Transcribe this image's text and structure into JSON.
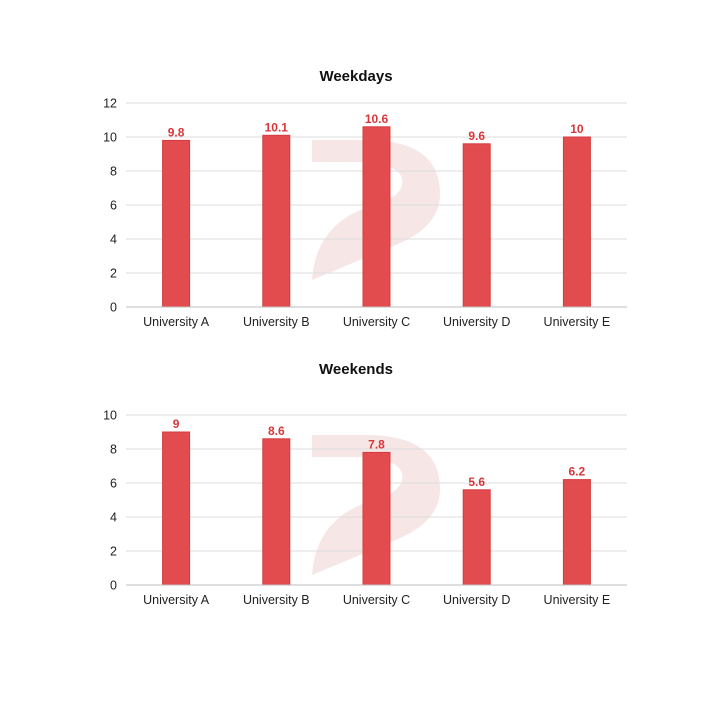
{
  "colors": {
    "bar": "#e24c4f",
    "bar_stroke": "#d63b3f",
    "label": "#d9363a",
    "watermark": "#f6e3e3"
  },
  "watermark_icon": "brand-logo-watermark",
  "chart_data": [
    {
      "type": "bar",
      "title": "Weekdays",
      "categories": [
        "University A",
        "University B",
        "University C",
        "University D",
        "University E"
      ],
      "values": [
        9.8,
        10.1,
        10.6,
        9.6,
        10
      ],
      "data_labels": [
        "9.8",
        "10.1",
        "10.6",
        "9.6",
        "10"
      ],
      "yticks": [
        "0",
        "2",
        "4",
        "6",
        "8",
        "10",
        "12"
      ],
      "ylim": [
        0,
        12
      ],
      "xlabel": "",
      "ylabel": "",
      "grid": true,
      "legend": "none"
    },
    {
      "type": "bar",
      "title": "Weekends",
      "categories": [
        "University A",
        "University B",
        "University C",
        "University D",
        "University E"
      ],
      "values": [
        9,
        8.6,
        7.8,
        5.6,
        6.2
      ],
      "data_labels": [
        "9",
        "8.6",
        "7.8",
        "5.6",
        "6.2"
      ],
      "yticks": [
        "0",
        "2",
        "4",
        "6",
        "8",
        "10"
      ],
      "ylim": [
        0,
        10
      ],
      "xlabel": "",
      "ylabel": "",
      "grid": true,
      "legend": "none"
    }
  ]
}
